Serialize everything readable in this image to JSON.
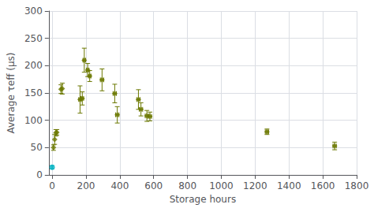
{
  "chart_data": {
    "type": "scatter",
    "title": "",
    "xlabel": "Storage hours",
    "ylabel": "Average τeff (μs)",
    "xlim": [
      -20,
      1800
    ],
    "xticks": [
      0,
      200,
      400,
      600,
      800,
      1000,
      1200,
      1400,
      1600,
      1800
    ],
    "ylim": [
      0,
      300
    ],
    "yticks": [
      0,
      50,
      100,
      150,
      200,
      250,
      300
    ],
    "grid": true,
    "series": [
      {
        "color": "#00b0c0",
        "marker": "circle",
        "x": [
          0
        ],
        "values": [
          14
        ],
        "xerr": [
          0
        ],
        "yerr": [
          3
        ]
      },
      {
        "color": "#6b7800",
        "marker": "diamond",
        "x": [
          8,
          15,
          22,
          28,
          52,
          60,
          165,
          178,
          190,
          210,
          222,
          295,
          370,
          385,
          510,
          525,
          560,
          578,
          1270,
          1670
        ],
        "values": [
          50,
          65,
          77,
          78,
          157,
          158,
          138,
          140,
          210,
          192,
          181,
          174,
          149,
          110,
          138,
          120,
          108,
          107,
          79,
          53
        ],
        "xerr": [
          0,
          0,
          0,
          0,
          0,
          0,
          8,
          8,
          8,
          8,
          8,
          10,
          10,
          10,
          10,
          10,
          10,
          10,
          10,
          10
        ],
        "yerr": [
          5,
          9,
          6,
          5,
          8,
          10,
          25,
          12,
          22,
          12,
          10,
          20,
          17,
          15,
          18,
          12,
          10,
          8,
          5,
          7
        ]
      }
    ]
  }
}
